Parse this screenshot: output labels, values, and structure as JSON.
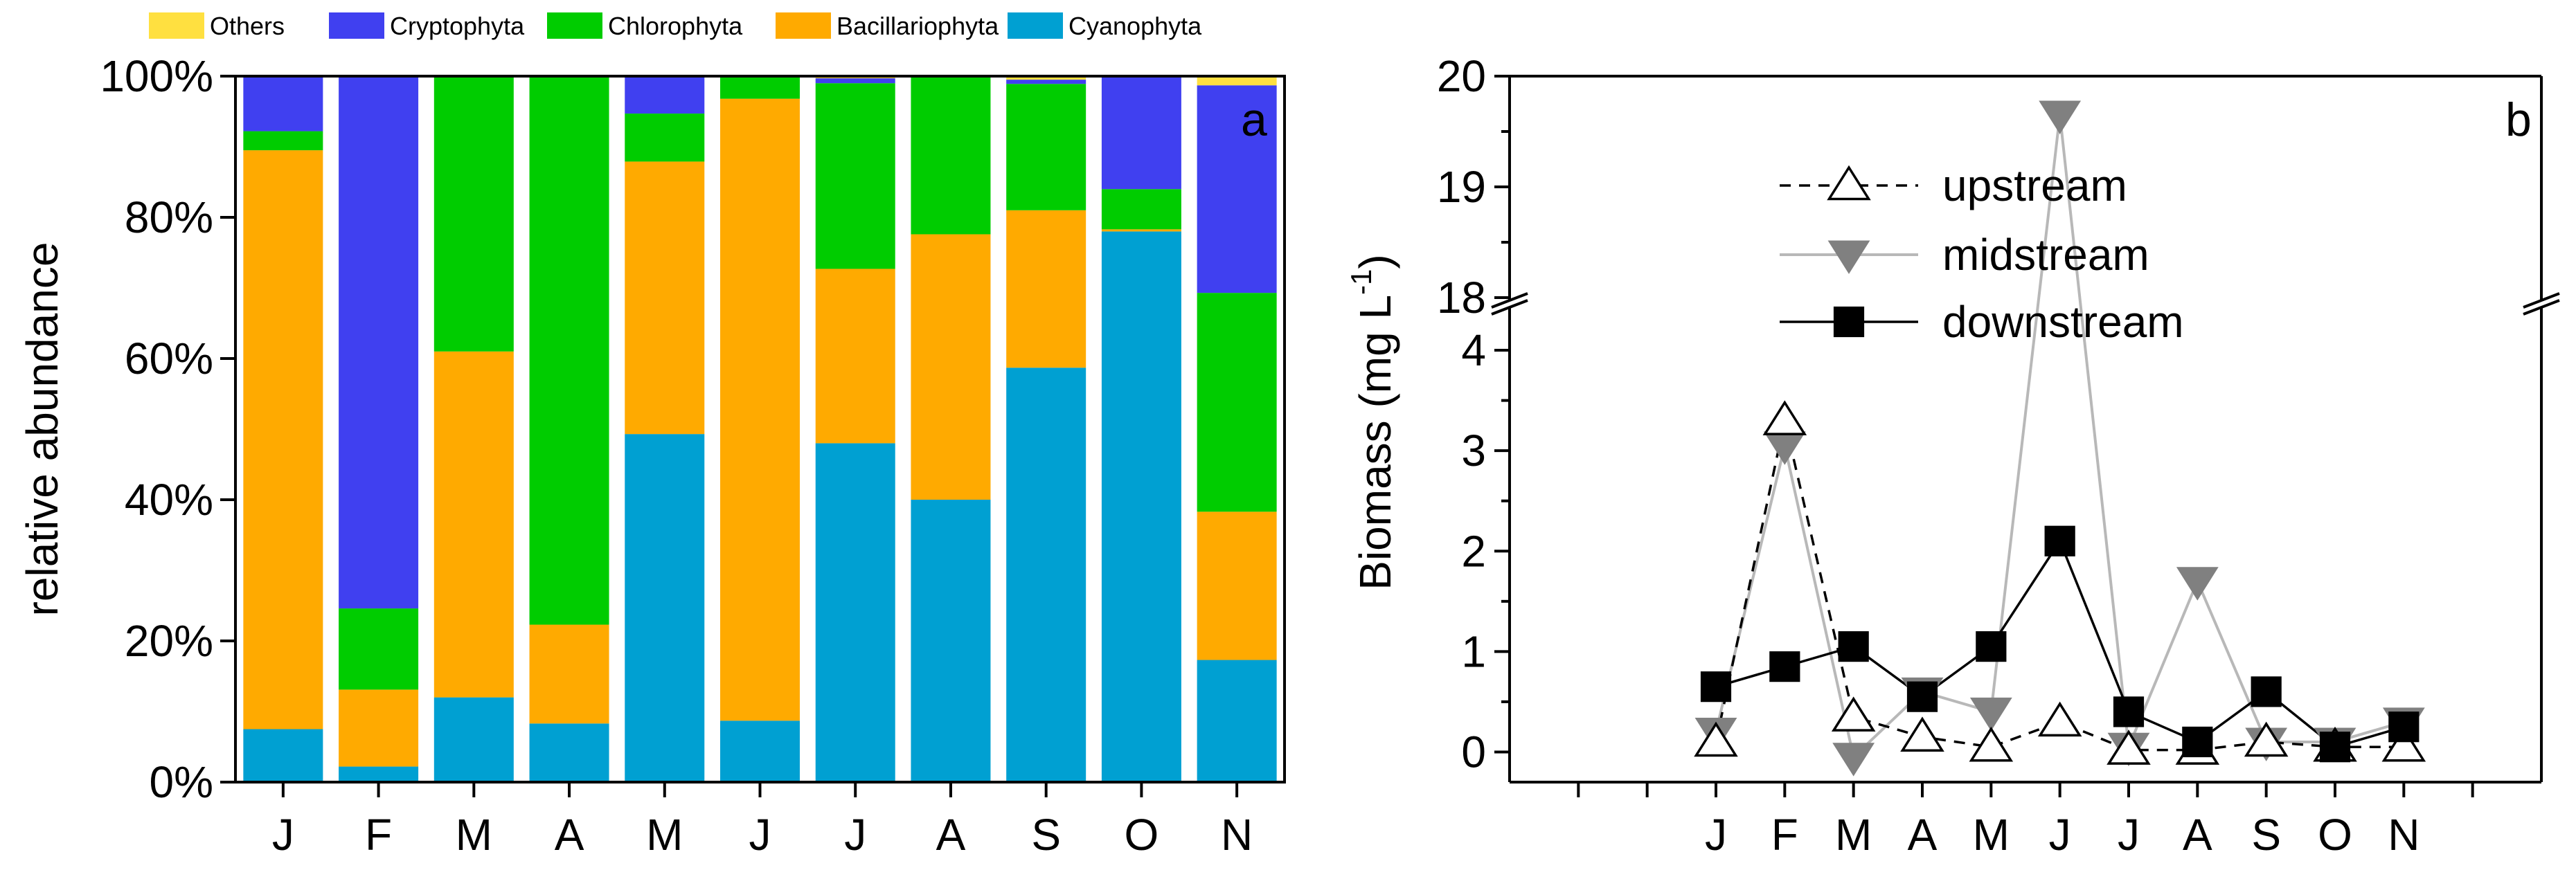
{
  "chart_data": [
    {
      "type": "bar",
      "stacked": true,
      "panel_label": "a",
      "ylabel": "relative abundance",
      "ylim": [
        0,
        100
      ],
      "y_ticks": [
        "0%",
        "20%",
        "40%",
        "60%",
        "80%",
        "100%"
      ],
      "categories": [
        "J",
        "F",
        "M",
        "A",
        "M",
        "J",
        "J",
        "A",
        "S",
        "O",
        "N"
      ],
      "legend_position": "top",
      "series": [
        {
          "name": "Cyanophyta",
          "color": "#00A0D2",
          "values": [
            7.5,
            2.2,
            12,
            8.3,
            49.3,
            8.7,
            48,
            40,
            58.7,
            78,
            17.3
          ]
        },
        {
          "name": "Bacillariophyta",
          "color": "#FFAA00",
          "values": [
            82,
            10.9,
            49,
            14,
            38.6,
            88.1,
            24.7,
            37.6,
            22.3,
            0.3,
            21
          ]
        },
        {
          "name": "Chlorophyta",
          "color": "#00CC00",
          "values": [
            2.7,
            11.5,
            39,
            77.7,
            6.8,
            3.2,
            26.3,
            22.4,
            17.9,
            5.7,
            31
          ]
        },
        {
          "name": "Cryptophyta",
          "color": "#4040F0",
          "values": [
            7.8,
            75.4,
            0,
            0,
            5.3,
            0,
            0.7,
            0,
            0.6,
            16,
            29.4
          ]
        },
        {
          "name": "Others",
          "color": "#FFE040",
          "values": [
            0,
            0,
            0,
            0,
            0,
            0,
            0.3,
            0,
            0.5,
            0,
            1.3
          ]
        }
      ]
    },
    {
      "type": "line",
      "panel_label": "b",
      "ylabel": "Biomass (mg L",
      "ylabel_sup": "-1",
      "ylabel_close": ")",
      "axis_break": {
        "lower": [
          -0.3,
          4.4
        ],
        "upper": [
          18,
          20
        ]
      },
      "y_ticks_lower": [
        "0",
        "1",
        "2",
        "3",
        "4"
      ],
      "y_ticks_upper": [
        "18",
        "19",
        "20"
      ],
      "categories": [
        "J",
        "F",
        "M",
        "A",
        "M",
        "J",
        "J",
        "A",
        "S",
        "O",
        "N"
      ],
      "legend_position": "top-center",
      "series": [
        {
          "name": "upstream",
          "color": "#000000",
          "marker": "open-triangle-up",
          "line": "dashed",
          "values": [
            0.1,
            3.3,
            0.35,
            0.15,
            0.05,
            0.3,
            0.02,
            0.02,
            0.1,
            0.05,
            0.05
          ]
        },
        {
          "name": "midstream",
          "color": "#888888",
          "marker": "filled-triangle-down",
          "line": "solid-light",
          "values": [
            0.2,
            3.05,
            -0.05,
            0.6,
            0.4,
            19.65,
            0.05,
            1.7,
            0.1,
            0.1,
            0.3
          ]
        },
        {
          "name": "downstream",
          "color": "#000000",
          "marker": "filled-square",
          "line": "solid",
          "values": [
            0.65,
            0.85,
            1.05,
            0.55,
            1.05,
            2.1,
            0.4,
            0.1,
            0.6,
            0.05,
            0.25
          ]
        }
      ]
    }
  ]
}
